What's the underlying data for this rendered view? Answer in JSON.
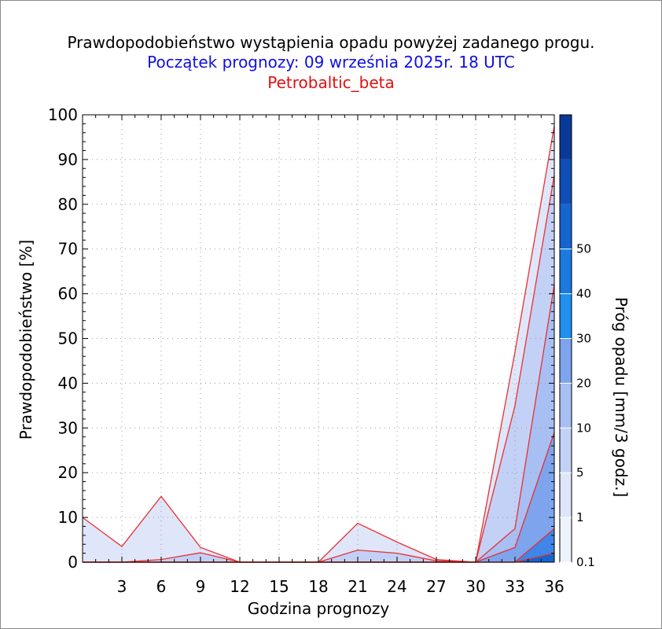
{
  "chart_data": {
    "type": "area",
    "title": "Prawdopodobieństwo wystąpienia opadu powyżej zadanego progu.",
    "subtitle": "Początek prognozy: 09 września 2025r. 18 UTC",
    "model": "Petrobaltic_beta",
    "xlabel": "Godzina prognozy",
    "ylabel": "Prawdopodobieństwo [%]",
    "colorbar_label": "Próg opadu [mm/3 godz.]",
    "xlim": [
      0,
      36
    ],
    "ylim": [
      0,
      100
    ],
    "x_ticks": [
      3,
      6,
      9,
      12,
      15,
      18,
      21,
      24,
      27,
      30,
      33,
      36
    ],
    "y_ticks": [
      0,
      10,
      20,
      30,
      40,
      50,
      60,
      70,
      80,
      90,
      100
    ],
    "x": [
      0,
      3,
      6,
      9,
      12,
      15,
      18,
      21,
      24,
      27,
      30,
      33,
      36
    ],
    "series": [
      {
        "threshold": "0.1",
        "color": "#dfe6fa",
        "values": [
          10,
          3.5,
          14.7,
          3.3,
          0,
          0,
          0,
          8.7,
          4.5,
          0.6,
          0,
          47,
          97.5
        ]
      },
      {
        "threshold": "1",
        "color": "#c3d1f6",
        "values": [
          0,
          0,
          0.6,
          2.1,
          0,
          0,
          0,
          2.7,
          2.0,
          0.3,
          0,
          35,
          86.5
        ]
      },
      {
        "threshold": "5",
        "color": "#a8bff3",
        "values": [
          0,
          0,
          0,
          0,
          0,
          0,
          0,
          0,
          0,
          0,
          0,
          7.5,
          62
        ]
      },
      {
        "threshold": "10",
        "color": "#7ea4ee",
        "values": [
          0,
          0,
          0,
          0,
          0,
          0,
          0,
          0,
          0,
          0,
          0,
          3.3,
          29
        ]
      },
      {
        "threshold": "20",
        "color": "#3f86e8",
        "values": [
          0,
          0,
          0,
          0,
          0,
          0,
          0,
          0,
          0,
          0,
          0,
          0,
          7.5
        ]
      },
      {
        "threshold": "30",
        "color": "#1565cf",
        "values": [
          0,
          0,
          0,
          0,
          0,
          0,
          0,
          0,
          0,
          0,
          0,
          0,
          2.0
        ]
      }
    ],
    "colorbar": {
      "labels": [
        "0.1",
        "1",
        "5",
        "10",
        "20",
        "30",
        "40",
        "50"
      ],
      "colors": [
        "#eef2fc",
        "#dfe6fa",
        "#c3d1f6",
        "#a8bff3",
        "#7ea4ee",
        "#1e90f0",
        "#1a7ae0",
        "#1565cf",
        "#0f4fb5",
        "#0a3a98"
      ]
    },
    "grid": true,
    "line_color": "#e83030"
  }
}
